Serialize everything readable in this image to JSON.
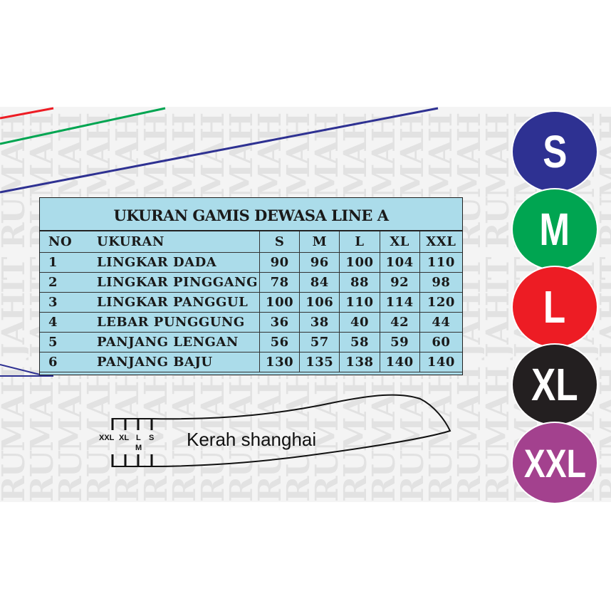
{
  "watermark": "RUMAH JAHIT",
  "table": {
    "title": "UKURAN GAMIS  DEWASA LINE A",
    "headers": [
      "NO",
      "UKURAN",
      "S",
      "M",
      "L",
      "XL",
      "XXL"
    ],
    "rows": [
      [
        "1",
        "LINGKAR DADA",
        "90",
        "96",
        "100",
        "104",
        "110"
      ],
      [
        "2",
        "LINGKAR PINGGANG",
        "78",
        "84",
        "88",
        "92",
        "98"
      ],
      [
        "3",
        "LINGKAR PANGGUL",
        "100",
        "106",
        "110",
        "114",
        "120"
      ],
      [
        "4",
        "LEBAR PUNGGUNG",
        "36",
        "38",
        "40",
        "42",
        "44"
      ],
      [
        "5",
        "PANJANG LENGAN",
        "56",
        "57",
        "58",
        "59",
        "60"
      ],
      [
        "6",
        "PANJANG BAJU",
        "130",
        "135",
        "138",
        "140",
        "140"
      ]
    ]
  },
  "sizes": [
    {
      "label": "S",
      "color": "#2e3192"
    },
    {
      "label": "M",
      "color": "#00a551"
    },
    {
      "label": "L",
      "color": "#ed1c24"
    },
    {
      "label": "XL",
      "color": "#231f20"
    },
    {
      "label": "XXL",
      "color": "#a3418e"
    }
  ],
  "collar": {
    "label": "Kerah shanghai",
    "marks": [
      "XXL",
      "XL",
      "L",
      "M",
      "S"
    ]
  },
  "line_colors": {
    "red": "#ed1c24",
    "green": "#00a551",
    "blue": "#2e3192"
  }
}
